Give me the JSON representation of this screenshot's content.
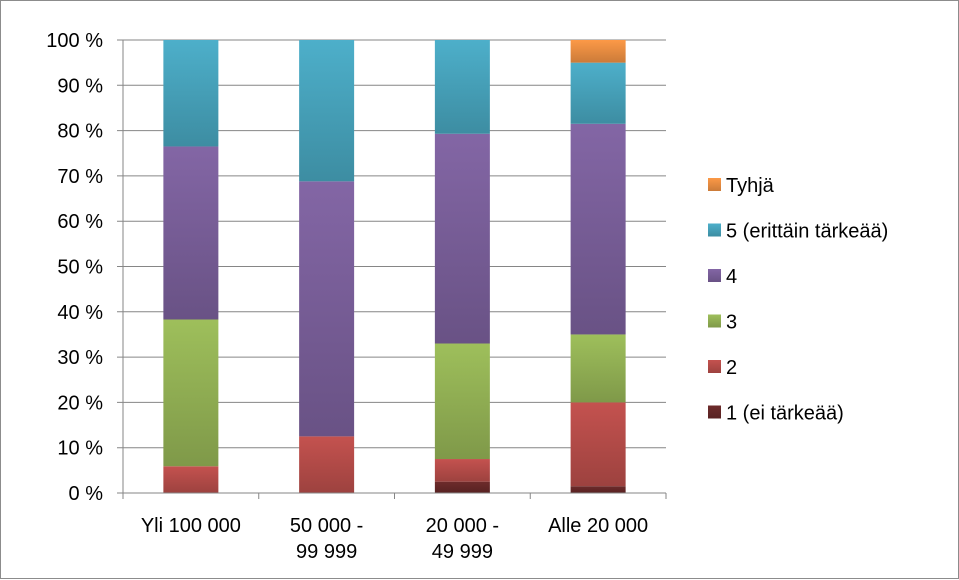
{
  "chart_data": {
    "type": "bar",
    "stacked": true,
    "percent": true,
    "categories": [
      [
        "Yli 100 000"
      ],
      [
        "50 000 -",
        "99 999"
      ],
      [
        "20 000 -",
        "49 999"
      ],
      [
        "Alle 20 000"
      ]
    ],
    "series": [
      {
        "name": "1 (ei tärkeää)",
        "color": "#6b2a2a",
        "values": [
          0,
          0,
          2.5,
          1.5
        ]
      },
      {
        "name": "2",
        "color": "#c0504d",
        "values": [
          5.9,
          12.5,
          5.0,
          18.5
        ]
      },
      {
        "name": "3",
        "color": "#9bbb59",
        "values": [
          32.4,
          0,
          25.5,
          15.0
        ]
      },
      {
        "name": "4",
        "color": "#8064a2",
        "values": [
          38.2,
          56.3,
          46.3,
          46.5
        ]
      },
      {
        "name": "5 (erittäin tärkeää)",
        "color": "#4bacc6",
        "values": [
          23.5,
          31.2,
          20.7,
          13.5
        ]
      },
      {
        "name": "Tyhjä",
        "color": "#f79646",
        "values": [
          0,
          0,
          0,
          5.0
        ]
      }
    ],
    "yticks": [
      "0 %",
      "10 %",
      "20 %",
      "30 %",
      "40 %",
      "50 %",
      "60 %",
      "70 %",
      "80 %",
      "90 %",
      "100 %"
    ],
    "ylim": [
      0,
      100
    ],
    "grid": true,
    "legend": "right",
    "legend_order": [
      "Tyhjä",
      "5 (erittäin tärkeää)",
      "4",
      "3",
      "2",
      "1 (ei tärkeää)"
    ]
  }
}
